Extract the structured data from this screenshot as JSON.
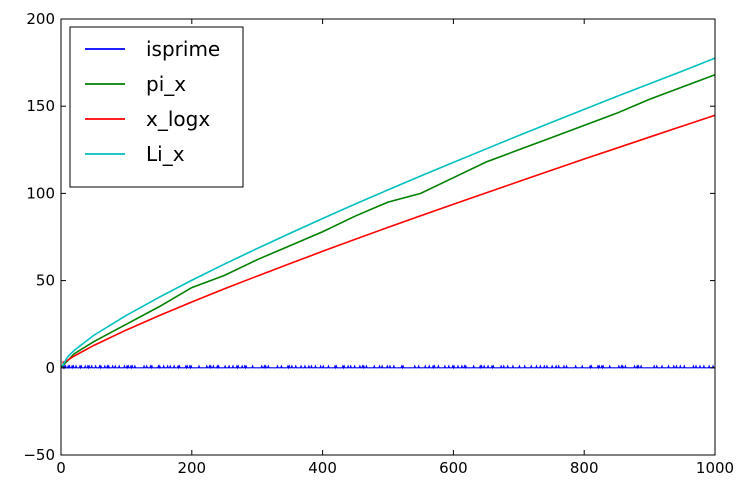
{
  "chart_data": {
    "type": "line",
    "xlim": [
      0,
      1000
    ],
    "ylim": [
      -50,
      200
    ],
    "x_ticks": [
      0,
      200,
      400,
      600,
      800,
      1000
    ],
    "y_ticks": [
      -50,
      0,
      50,
      100,
      150,
      200
    ],
    "grid": false,
    "legend_position": "top-left",
    "series": [
      {
        "name": "isprime",
        "color": "#0000ff",
        "description_values": "0/1 indicator for n = 0..1000",
        "x": [
          0,
          1000
        ],
        "y": [
          0,
          1
        ]
      },
      {
        "name": "pi_x",
        "color": "#008000",
        "x": [
          0,
          2,
          10,
          20,
          50,
          100,
          150,
          200,
          250,
          300,
          350,
          400,
          450,
          500,
          550,
          600,
          650,
          700,
          750,
          800,
          850,
          900,
          950,
          1000
        ],
        "y": [
          0,
          1,
          4,
          8,
          15,
          25,
          35,
          46,
          53,
          62,
          70,
          78,
          87,
          95,
          100,
          109,
          118,
          125,
          132,
          139,
          146,
          154,
          161,
          168
        ]
      },
      {
        "name": "x_logx",
        "color": "#ff0000",
        "x": [
          2,
          10,
          20,
          50,
          100,
          150,
          200,
          250,
          300,
          350,
          400,
          450,
          500,
          550,
          600,
          650,
          700,
          750,
          800,
          850,
          900,
          950,
          1000
        ],
        "y": [
          2.9,
          4.3,
          6.7,
          12.8,
          21.7,
          29.9,
          37.7,
          45.3,
          52.6,
          59.7,
          66.8,
          73.7,
          80.5,
          87.2,
          93.8,
          100.3,
          106.8,
          113.3,
          119.7,
          126.0,
          132.3,
          138.6,
          144.8
        ]
      },
      {
        "name": "Li_x",
        "color": "#00bfbf",
        "x": [
          2,
          10,
          20,
          50,
          100,
          150,
          200,
          250,
          300,
          350,
          400,
          450,
          500,
          550,
          600,
          650,
          700,
          750,
          800,
          850,
          900,
          950,
          1000
        ],
        "y": [
          1.05,
          6.2,
          9.9,
          18.6,
          30.1,
          40.4,
          50.2,
          59.5,
          68.4,
          77.1,
          85.6,
          93.9,
          102.0,
          110.0,
          117.8,
          125.5,
          133.2,
          140.7,
          148.2,
          155.6,
          162.9,
          170.1,
          177.6
        ]
      }
    ]
  }
}
